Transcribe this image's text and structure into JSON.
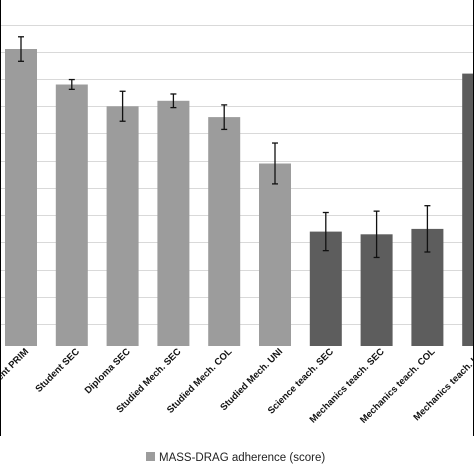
{
  "chart_data": {
    "type": "bar",
    "categories": [
      "Student PRIM",
      "Student SEC",
      "Diploma SEC",
      "Studied Mech. SEC",
      "Studied Mech. COL",
      "Studied Mech. UNI",
      "Science teach. SEC",
      "Mechanics teach. SEC",
      "Mechanics teach. COL",
      "Mechanics teach. UNI"
    ],
    "values": [
      8.1,
      6.8,
      6.0,
      6.2,
      5.6,
      3.9,
      1.4,
      1.3,
      1.5,
      7.2
    ],
    "errors": [
      0.45,
      0.18,
      0.55,
      0.25,
      0.45,
      0.75,
      0.7,
      0.85,
      0.85,
      0.0
    ],
    "group_colors": [
      "#9c9c9c",
      "#9c9c9c",
      "#9c9c9c",
      "#9c9c9c",
      "#9c9c9c",
      "#9c9c9c",
      "#5d5d5d",
      "#5d5d5d",
      "#5d5d5d",
      "#5d5d5d"
    ],
    "ylim": [
      -2.8,
      9.9
    ],
    "grid": true,
    "legend_position": "bottom",
    "legend": [
      {
        "label": "MASS-DRAG adherence (score)",
        "color": "#9c9c9c"
      }
    ],
    "title": "",
    "xlabel": "",
    "ylabel": ""
  }
}
